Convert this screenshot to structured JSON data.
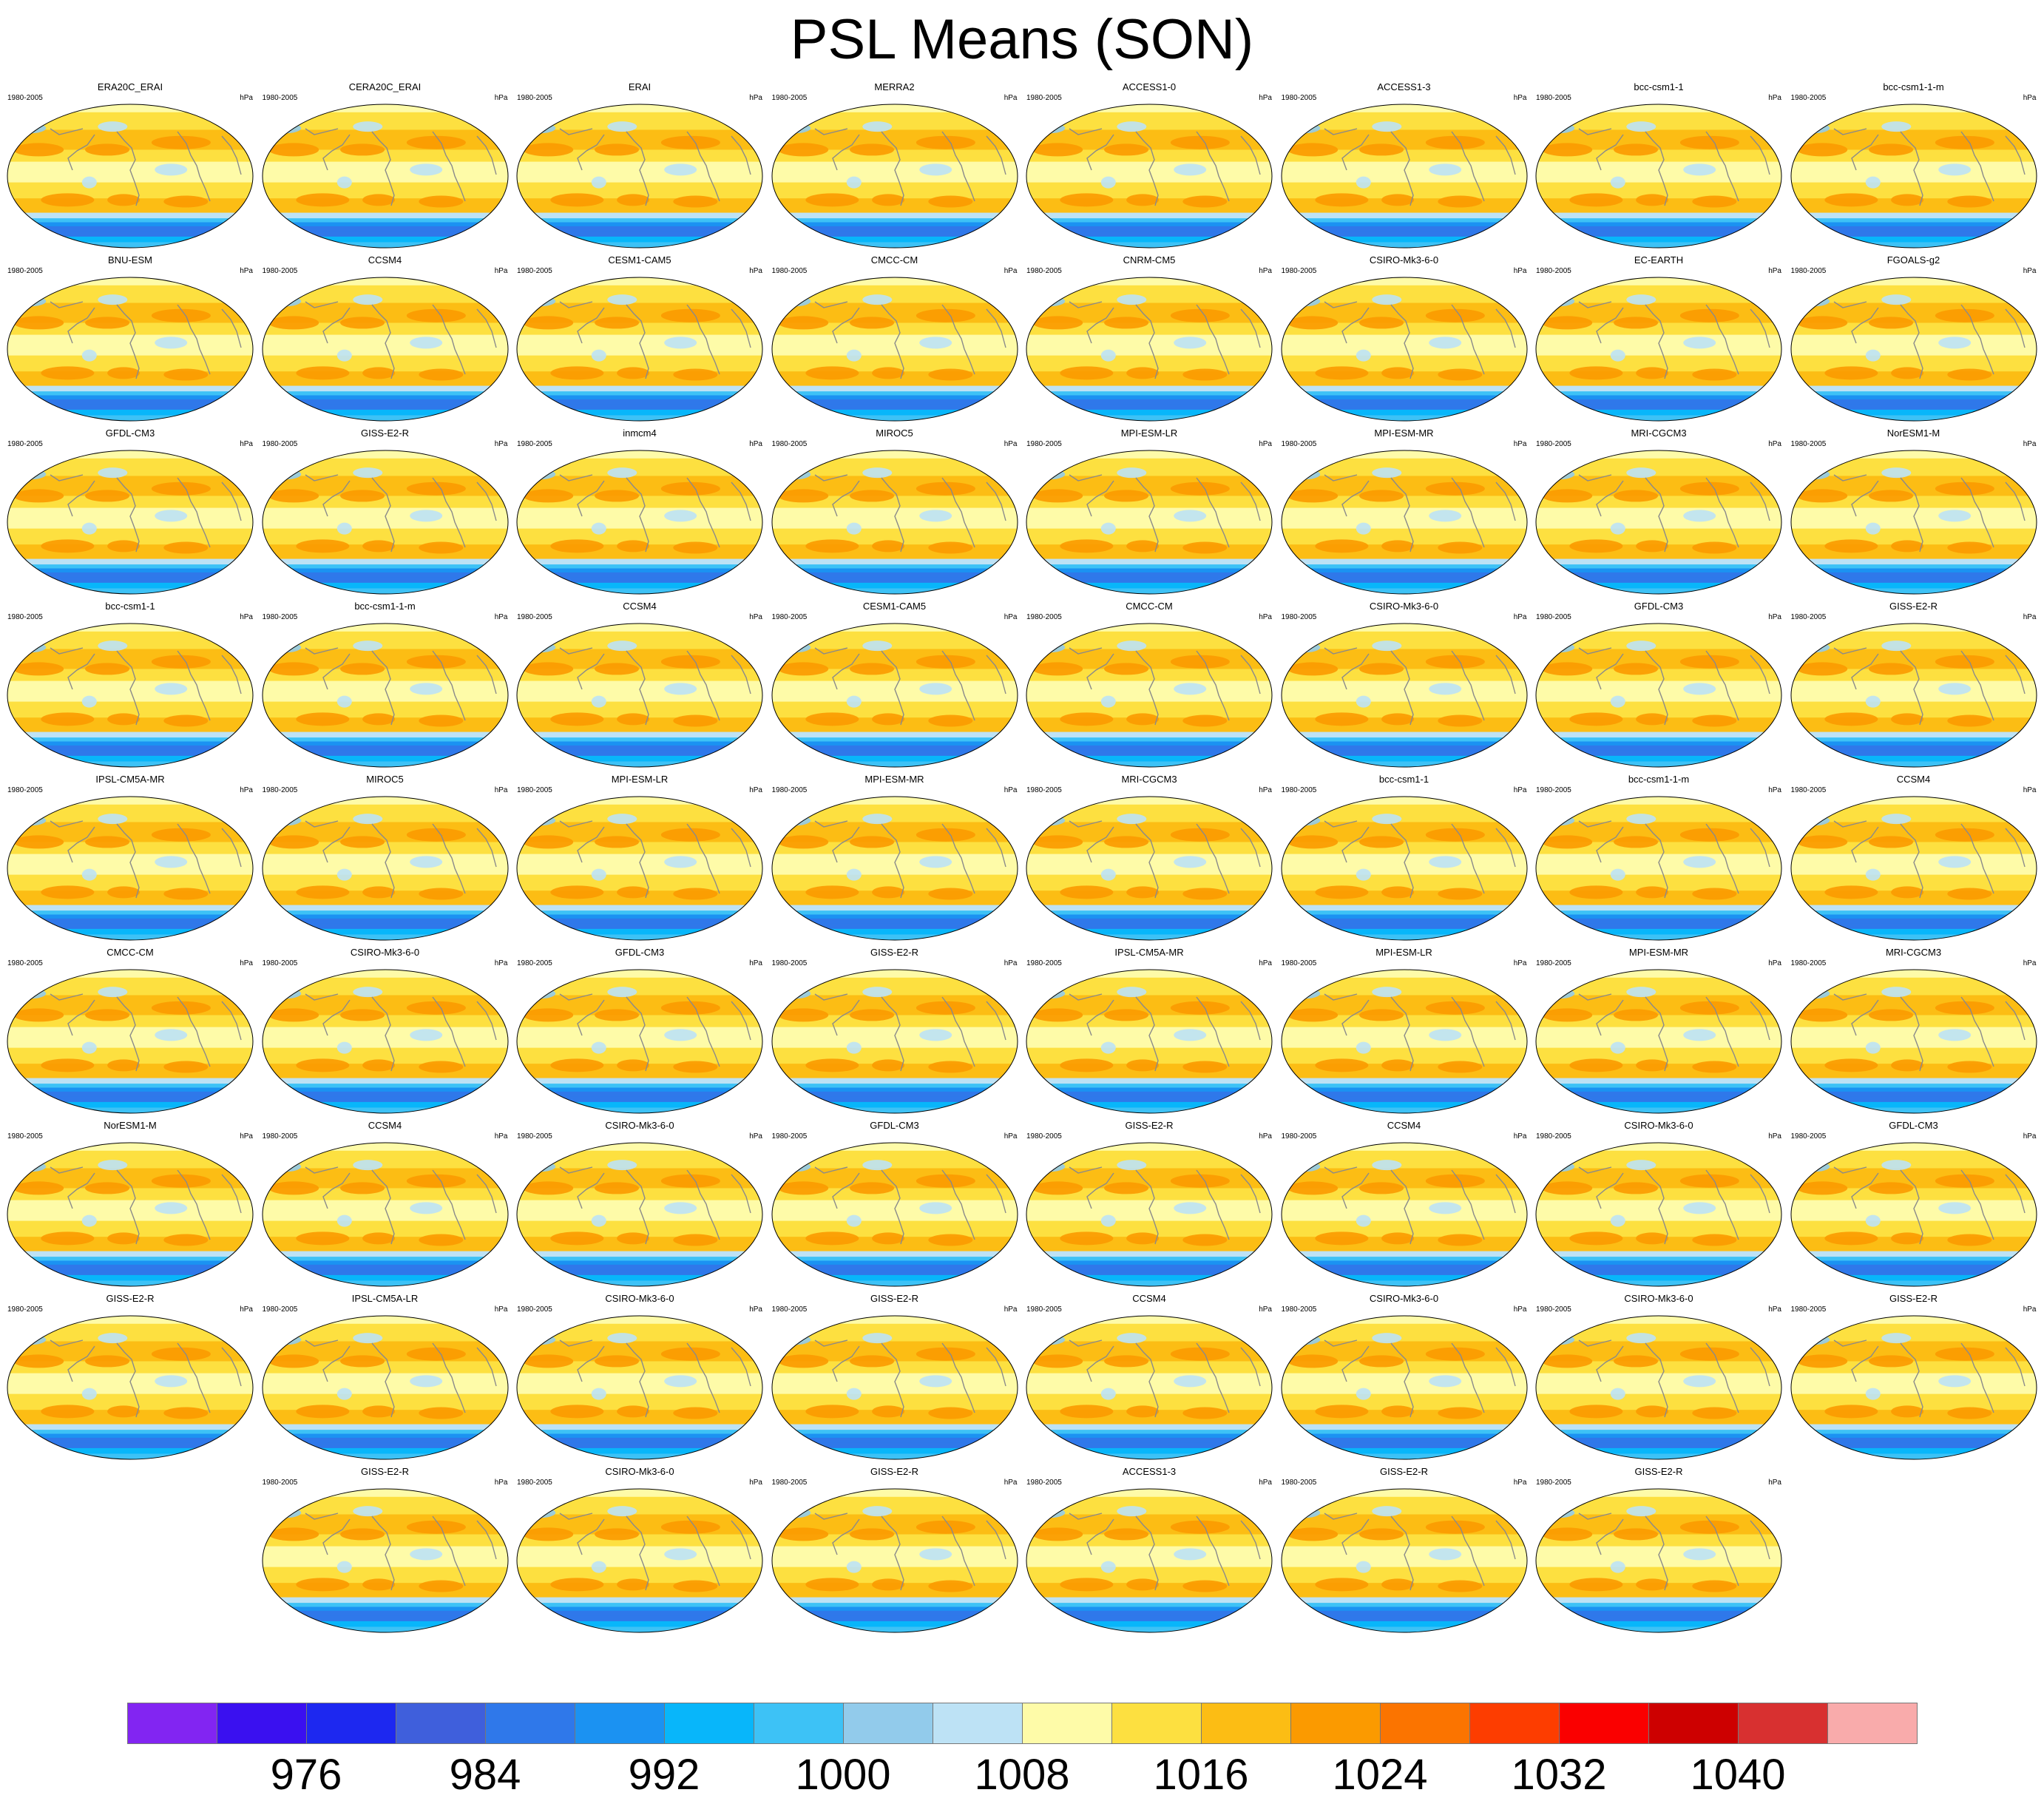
{
  "title": "PSL Means (SON)",
  "panel_left_label": "1980-2005",
  "panel_right_label": "hPa",
  "chart_data": {
    "type": "heatmap",
    "title": "PSL Means (SON)",
    "units": "hPa",
    "period": "1980-2005",
    "projection": "global map panels",
    "colorbar": {
      "levels": [
        972,
        976,
        980,
        984,
        988,
        992,
        996,
        1000,
        1004,
        1008,
        1012,
        1016,
        1020,
        1024,
        1028,
        1032,
        1036,
        1040,
        1044
      ],
      "tick_labels": [
        "976",
        "984",
        "992",
        "1000",
        "1008",
        "1016",
        "1024",
        "1032",
        "1040"
      ],
      "tick_values": [
        976,
        984,
        992,
        1000,
        1008,
        1016,
        1024,
        1032,
        1040
      ],
      "colors": [
        "#8225f2",
        "#3a10f0",
        "#1d28f0",
        "#3f5fdc",
        "#2f78ea",
        "#1b92f2",
        "#08b6fa",
        "#3dc2f6",
        "#92cbeb",
        "#bde2f5",
        "#fefba8",
        "#fde040",
        "#fcbd14",
        "#fb9a00",
        "#fb7400",
        "#fd3d00",
        "#fa0000",
        "#cd0000",
        "#d83030",
        "#f9abab"
      ]
    },
    "panel_rows": [
      [
        "ERA20C_ERAI",
        "CERA20C_ERAI",
        "ERAI",
        "MERRA2",
        "ACCESS1-0",
        "ACCESS1-3",
        "bcc-csm1-1",
        "bcc-csm1-1-m"
      ],
      [
        "BNU-ESM",
        "CCSM4",
        "CESM1-CAM5",
        "CMCC-CM",
        "CNRM-CM5",
        "CSIRO-Mk3-6-0",
        "EC-EARTH",
        "FGOALS-g2"
      ],
      [
        "GFDL-CM3",
        "GISS-E2-R",
        "inmcm4",
        "MIROC5",
        "MPI-ESM-LR",
        "MPI-ESM-MR",
        "MRI-CGCM3",
        "NorESM1-M"
      ],
      [
        "bcc-csm1-1",
        "bcc-csm1-1-m",
        "CCSM4",
        "CESM1-CAM5",
        "CMCC-CM",
        "CSIRO-Mk3-6-0",
        "GFDL-CM3",
        "GISS-E2-R"
      ],
      [
        "IPSL-CM5A-MR",
        "MIROC5",
        "MPI-ESM-LR",
        "MPI-ESM-MR",
        "MRI-CGCM3",
        "bcc-csm1-1",
        "bcc-csm1-1-m",
        "CCSM4"
      ],
      [
        "CMCC-CM",
        "CSIRO-Mk3-6-0",
        "GFDL-CM3",
        "GISS-E2-R",
        "IPSL-CM5A-MR",
        "MPI-ESM-LR",
        "MPI-ESM-MR",
        "MRI-CGCM3"
      ],
      [
        "NorESM1-M",
        "CCSM4",
        "CSIRO-Mk3-6-0",
        "GFDL-CM3",
        "GISS-E2-R",
        "CCSM4",
        "CSIRO-Mk3-6-0",
        "GFDL-CM3"
      ],
      [
        "GISS-E2-R",
        "IPSL-CM5A-LR",
        "CSIRO-Mk3-6-0",
        "GISS-E2-R",
        "CCSM4",
        "CSIRO-Mk3-6-0",
        "CSIRO-Mk3-6-0",
        "GISS-E2-R"
      ],
      [
        "GISS-E2-R",
        "CSIRO-Mk3-6-0",
        "GISS-E2-R",
        "ACCESS1-3",
        "GISS-E2-R",
        "GISS-E2-R"
      ]
    ]
  }
}
